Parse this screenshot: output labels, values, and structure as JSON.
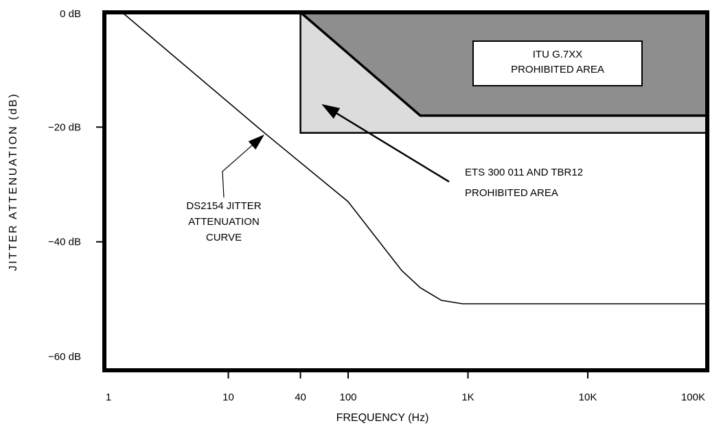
{
  "chart_data": {
    "type": "line",
    "xlabel": "FREQUENCY (Hz)",
    "ylabel": "JITTER ATTENUATION (dB)",
    "x_scale": "log",
    "xlim": [
      1,
      100000
    ],
    "ylim": [
      -60,
      0
    ],
    "x_ticks": [
      {
        "value": 1,
        "label": "1"
      },
      {
        "value": 10,
        "label": "10"
      },
      {
        "value": 40,
        "label": "40"
      },
      {
        "value": 100,
        "label": "100"
      },
      {
        "value": 1000,
        "label": "1K"
      },
      {
        "value": 10000,
        "label": "10K"
      },
      {
        "value": 100000,
        "label": "100K"
      }
    ],
    "y_ticks": [
      {
        "value": 0,
        "label": "0 dB"
      },
      {
        "value": -20,
        "label": "−20 dB"
      },
      {
        "value": -40,
        "label": "−40 dB"
      },
      {
        "value": -60,
        "label": "−60 dB"
      }
    ],
    "grid": false,
    "series": [
      {
        "name": "DS2154 JITTER ATTENUATION CURVE",
        "color": "#000000",
        "points": [
          {
            "x": 1.3,
            "y": 0
          },
          {
            "x": 20,
            "y": -21
          },
          {
            "x": 100,
            "y": -33
          },
          {
            "x": 280,
            "y": -45
          },
          {
            "x": 400,
            "y": -48
          },
          {
            "x": 600,
            "y": -50.2
          },
          {
            "x": 900,
            "y": -50.8
          },
          {
            "x": 100000,
            "y": -50.8
          }
        ]
      }
    ],
    "regions": [
      {
        "name": "ETS 300 011 AND TBR12 PROHIBITED AREA",
        "color": "#dcdcdc",
        "polygon": [
          [
            40,
            0
          ],
          [
            100000,
            0
          ],
          [
            100000,
            -21
          ],
          [
            40,
            -21
          ]
        ]
      },
      {
        "name": "ITU G.7XX PROHIBITED AREA",
        "color": "#8e8e8e",
        "polygon": [
          [
            40,
            0
          ],
          [
            100000,
            0
          ],
          [
            100000,
            -18
          ],
          [
            400,
            -18
          ]
        ]
      }
    ],
    "annotations": [
      {
        "lines": [
          "ITU G.7XX",
          "PROHIBITED AREA"
        ],
        "boxed": true
      },
      {
        "lines": [
          "ETS 300 011 AND TBR12",
          "PROHIBITED AREA"
        ],
        "arrow_to": {
          "x": 60,
          "y": -16
        }
      },
      {
        "lines": [
          "DS2154 JITTER",
          "ATTENUATION",
          "CURVE"
        ],
        "arrow_to": {
          "x": 20,
          "y": -21.3
        }
      }
    ]
  }
}
